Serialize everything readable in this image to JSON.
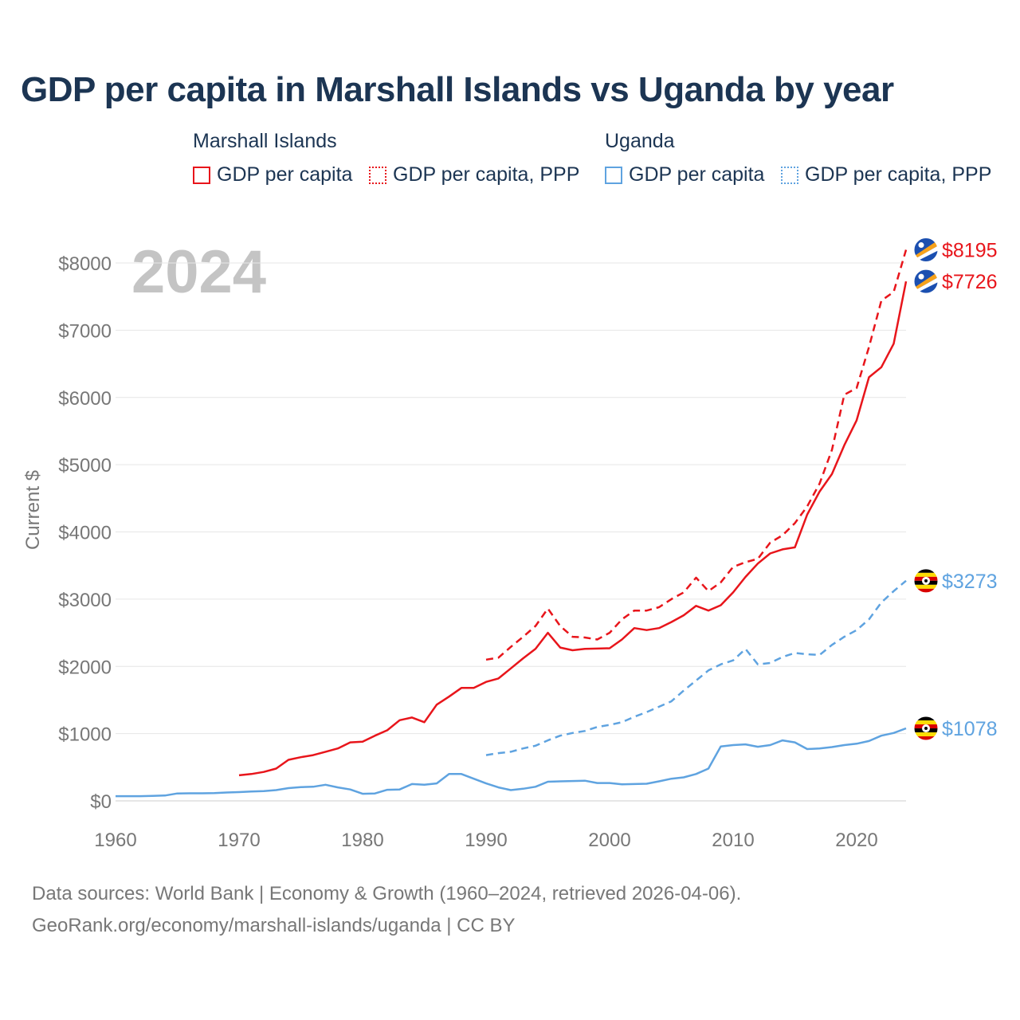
{
  "title": "GDP per capita in Marshall Islands vs Uganda by year",
  "year_label": "2024",
  "legend": {
    "groups": [
      {
        "name": "Marshall Islands",
        "items": [
          {
            "label": "GDP per capita",
            "style": "solid",
            "color": "#e8151b"
          },
          {
            "label": "GDP per capita, PPP",
            "style": "dotted",
            "color": "#e8151b"
          }
        ]
      },
      {
        "name": "Uganda",
        "items": [
          {
            "label": "GDP per capita",
            "style": "solid",
            "color": "#5fa3e0"
          },
          {
            "label": "GDP per capita, PPP",
            "style": "dotted",
            "color": "#5fa3e0"
          }
        ]
      }
    ]
  },
  "chart_data": {
    "type": "line",
    "title": "GDP per capita in Marshall Islands vs Uganda by year",
    "xlabel": "",
    "ylabel": "Current $",
    "xlim": [
      1960,
      2024
    ],
    "ylim": [
      0,
      8200
    ],
    "xticks": [
      1960,
      1970,
      1980,
      1990,
      2000,
      2010,
      2020
    ],
    "yticks": [
      0,
      1000,
      2000,
      3000,
      4000,
      5000,
      6000,
      7000,
      8000
    ],
    "ytick_labels": [
      "$0",
      "$1000",
      "$2000",
      "$3000",
      "$4000",
      "$5000",
      "$6000",
      "$7000",
      "$8000"
    ],
    "series": [
      {
        "name": "Marshall Islands GDP per capita",
        "color": "#e8151b",
        "dash": "solid",
        "end_label": "$7726",
        "x": [
          1970,
          1971,
          1972,
          1973,
          1974,
          1975,
          1976,
          1977,
          1978,
          1979,
          1980,
          1981,
          1982,
          1983,
          1984,
          1985,
          1986,
          1987,
          1988,
          1989,
          1990,
          1991,
          1992,
          1993,
          1994,
          1995,
          1996,
          1997,
          1998,
          1999,
          2000,
          2001,
          2002,
          2003,
          2004,
          2005,
          2006,
          2007,
          2008,
          2009,
          2010,
          2011,
          2012,
          2013,
          2014,
          2015,
          2016,
          2017,
          2018,
          2019,
          2020,
          2021,
          2022,
          2023,
          2024
        ],
        "values": [
          380,
          400,
          430,
          480,
          610,
          650,
          680,
          730,
          780,
          870,
          880,
          970,
          1050,
          1200,
          1240,
          1170,
          1430,
          1550,
          1680,
          1680,
          1770,
          1820,
          1970,
          2120,
          2260,
          2500,
          2280,
          2240,
          2260,
          2265,
          2270,
          2400,
          2570,
          2540,
          2570,
          2660,
          2760,
          2900,
          2830,
          2910,
          3100,
          3330,
          3530,
          3680,
          3740,
          3770,
          4260,
          4600,
          4860,
          5290,
          5660,
          6300,
          6450,
          6800,
          7726
        ]
      },
      {
        "name": "Marshall Islands GDP per capita, PPP",
        "color": "#e8151b",
        "dash": "dashed",
        "end_label": "$8195",
        "x": [
          1990,
          1991,
          1992,
          1993,
          1994,
          1995,
          1996,
          1997,
          1998,
          1999,
          2000,
          2001,
          2002,
          2003,
          2004,
          2005,
          2006,
          2007,
          2008,
          2009,
          2010,
          2011,
          2012,
          2013,
          2014,
          2015,
          2016,
          2017,
          2018,
          2019,
          2020,
          2021,
          2022,
          2023,
          2024
        ],
        "values": [
          2100,
          2130,
          2290,
          2440,
          2600,
          2860,
          2600,
          2440,
          2430,
          2400,
          2500,
          2700,
          2830,
          2830,
          2880,
          3000,
          3100,
          3320,
          3120,
          3250,
          3480,
          3550,
          3600,
          3840,
          3950,
          4130,
          4380,
          4720,
          5220,
          6040,
          6140,
          6750,
          7440,
          7570,
          8195
        ]
      },
      {
        "name": "Uganda GDP per capita",
        "color": "#5fa3e0",
        "dash": "solid",
        "end_label": "$1078",
        "x": [
          1960,
          1961,
          1962,
          1963,
          1964,
          1965,
          1966,
          1967,
          1968,
          1969,
          1970,
          1971,
          1972,
          1973,
          1974,
          1975,
          1976,
          1977,
          1978,
          1979,
          1980,
          1981,
          1982,
          1983,
          1984,
          1985,
          1986,
          1987,
          1988,
          1989,
          1990,
          1991,
          1992,
          1993,
          1994,
          1995,
          1996,
          1997,
          1998,
          1999,
          2000,
          2001,
          2002,
          2003,
          2004,
          2005,
          2006,
          2007,
          2008,
          2009,
          2010,
          2011,
          2012,
          2013,
          2014,
          2015,
          2016,
          2017,
          2018,
          2019,
          2020,
          2021,
          2022,
          2023,
          2024
        ],
        "values": [
          70,
          70,
          70,
          75,
          80,
          110,
          112,
          113,
          115,
          125,
          130,
          140,
          145,
          160,
          190,
          205,
          210,
          240,
          200,
          170,
          105,
          110,
          165,
          170,
          250,
          240,
          260,
          400,
          400,
          330,
          260,
          200,
          160,
          180,
          210,
          285,
          290,
          295,
          300,
          265,
          265,
          245,
          250,
          255,
          290,
          330,
          350,
          400,
          480,
          810,
          830,
          840,
          805,
          830,
          900,
          870,
          770,
          780,
          800,
          830,
          850,
          890,
          970,
          1010,
          1078
        ]
      },
      {
        "name": "Uganda GDP per capita, PPP",
        "color": "#5fa3e0",
        "dash": "dashed",
        "end_label": "$3273",
        "x": [
          1990,
          1991,
          1992,
          1993,
          1994,
          1995,
          1996,
          1997,
          1998,
          1999,
          2000,
          2001,
          2002,
          2003,
          2004,
          2005,
          2006,
          2007,
          2008,
          2009,
          2010,
          2011,
          2012,
          2013,
          2014,
          2015,
          2016,
          2017,
          2018,
          2019,
          2020,
          2021,
          2022,
          2023,
          2024
        ],
        "values": [
          680,
          710,
          730,
          780,
          820,
          900,
          970,
          1010,
          1040,
          1100,
          1130,
          1170,
          1250,
          1320,
          1400,
          1480,
          1640,
          1790,
          1940,
          2030,
          2090,
          2260,
          2030,
          2050,
          2140,
          2200,
          2180,
          2170,
          2320,
          2440,
          2540,
          2700,
          2950,
          3120,
          3273
        ]
      }
    ]
  },
  "footer": {
    "line1": "Data sources: World Bank | Economy & Growth (1960–2024, retrieved 2026-04-06).",
    "line2": "GeoRank.org/economy/marshall-islands/uganda | CC BY"
  }
}
